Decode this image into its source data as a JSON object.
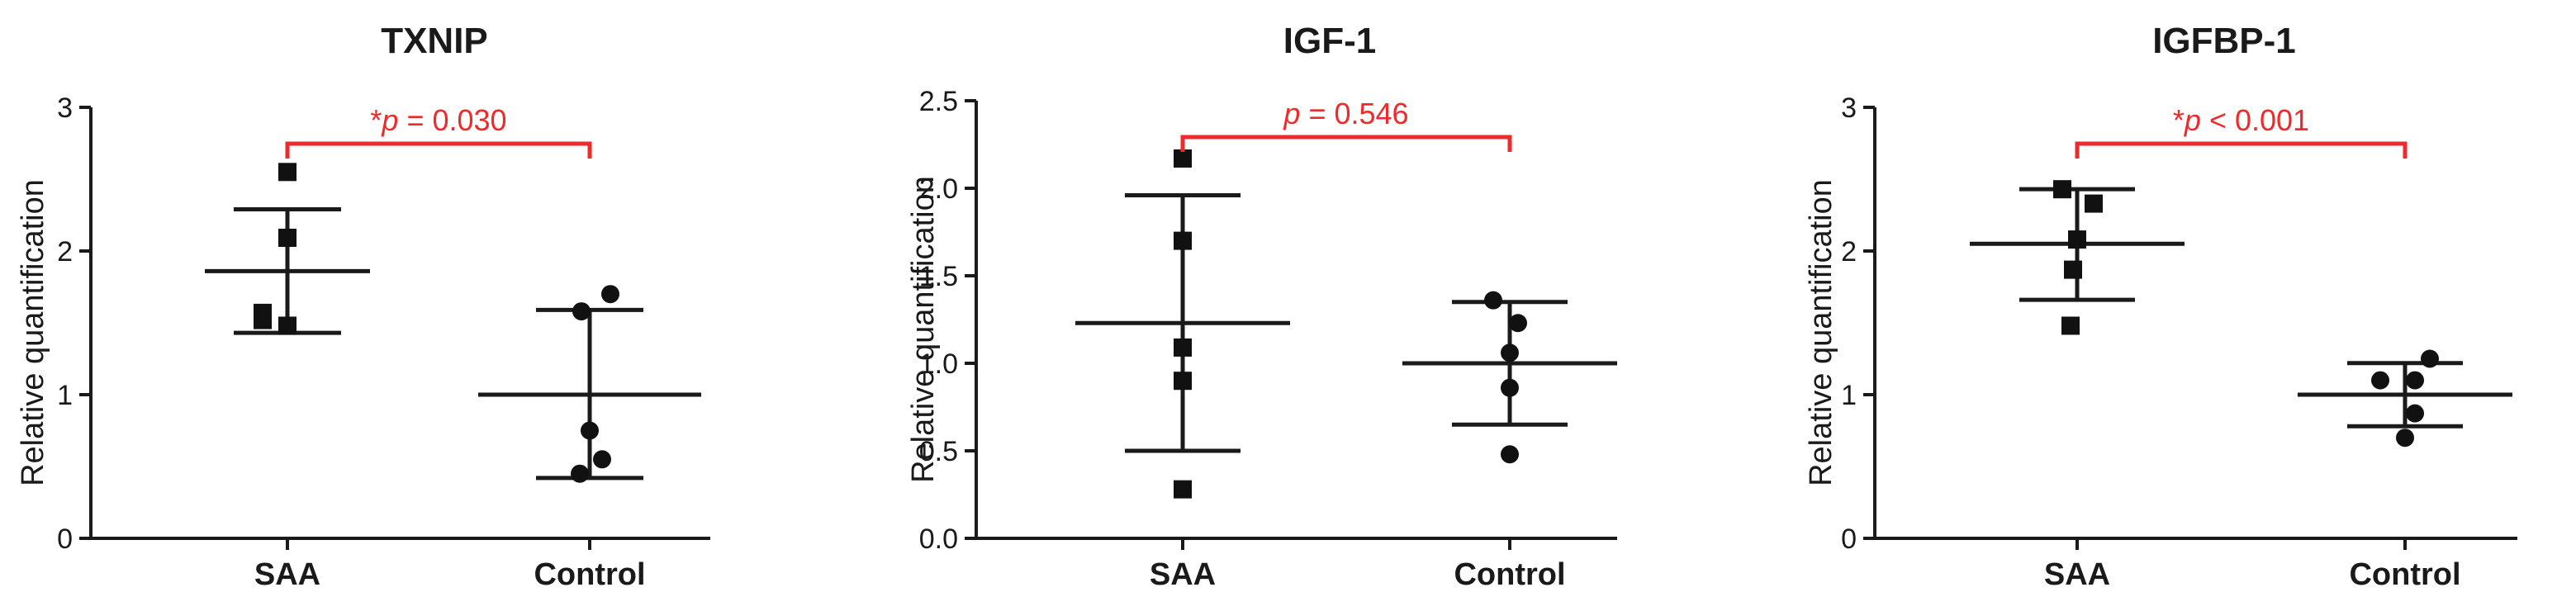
{
  "colors": {
    "axis": "#1a1a1a",
    "annotation": "#ee2b2b",
    "point": "#111111"
  },
  "chart_data": [
    {
      "type": "scatter",
      "title": "TXNIP",
      "ylabel": "Relative quantification",
      "xlabel": "",
      "ylim": [
        0,
        3
      ],
      "yticks": [
        0,
        1,
        2,
        3
      ],
      "ytick_labels": [
        "0",
        "1",
        "2",
        "3"
      ],
      "categories": [
        "SAA",
        "Control"
      ],
      "groups": [
        {
          "name": "SAA",
          "marker": "square",
          "values": [
            2.55,
            2.0,
            1.65,
            1.6,
            1.48
          ],
          "mean": 1.86,
          "sd_low": 1.43,
          "sd_high": 2.29
        },
        {
          "name": "Control",
          "marker": "circle",
          "values": [
            1.7,
            1.58,
            0.75,
            0.55,
            0.45
          ],
          "mean": 1.0,
          "sd_low": 0.42,
          "sd_high": 1.59
        }
      ],
      "annotation": {
        "star": "*",
        "p": "p",
        "rest": " = 0.030"
      }
    },
    {
      "type": "scatter",
      "title": "IGF-1",
      "ylabel": "Relative quantification",
      "xlabel": "",
      "ylim": [
        0,
        2.5
      ],
      "yticks": [
        0,
        0.5,
        1.0,
        1.5,
        2.0,
        2.5
      ],
      "ytick_labels": [
        "0.0",
        "0.5",
        "1.0",
        "1.5",
        "2.0",
        "2.5"
      ],
      "categories": [
        "SAA",
        "Control"
      ],
      "groups": [
        {
          "name": "SAA",
          "marker": "square",
          "values": [
            2.17,
            1.7,
            1.09,
            0.9,
            0.28
          ],
          "mean": 1.23,
          "sd_low": 0.5,
          "sd_high": 1.96
        },
        {
          "name": "Control",
          "marker": "circle",
          "values": [
            1.36,
            1.23,
            1.06,
            0.86,
            0.48
          ],
          "mean": 1.0,
          "sd_low": 0.65,
          "sd_high": 1.35
        }
      ],
      "annotation": {
        "star": "",
        "p": "p",
        "rest": " = 0.546"
      }
    },
    {
      "type": "scatter",
      "title": "IGFBP-1",
      "ylabel": "Relative quantification",
      "xlabel": "",
      "ylim": [
        0,
        3
      ],
      "yticks": [
        0,
        1,
        2,
        3
      ],
      "ytick_labels": [
        "0",
        "1",
        "2",
        "3"
      ],
      "categories": [
        "SAA",
        "Control"
      ],
      "groups": [
        {
          "name": "SAA",
          "marker": "square",
          "values": [
            2.43,
            2.33,
            2.08,
            1.87,
            1.48
          ],
          "mean": 2.05,
          "sd_low": 1.66,
          "sd_high": 2.43
        },
        {
          "name": "Control",
          "marker": "circle",
          "values": [
            1.25,
            1.1,
            1.1,
            0.87,
            0.7
          ],
          "mean": 1.0,
          "sd_low": 0.78,
          "sd_high": 1.22
        }
      ],
      "annotation": {
        "star": "*",
        "p": "p",
        "rest": " < 0.001"
      }
    }
  ]
}
